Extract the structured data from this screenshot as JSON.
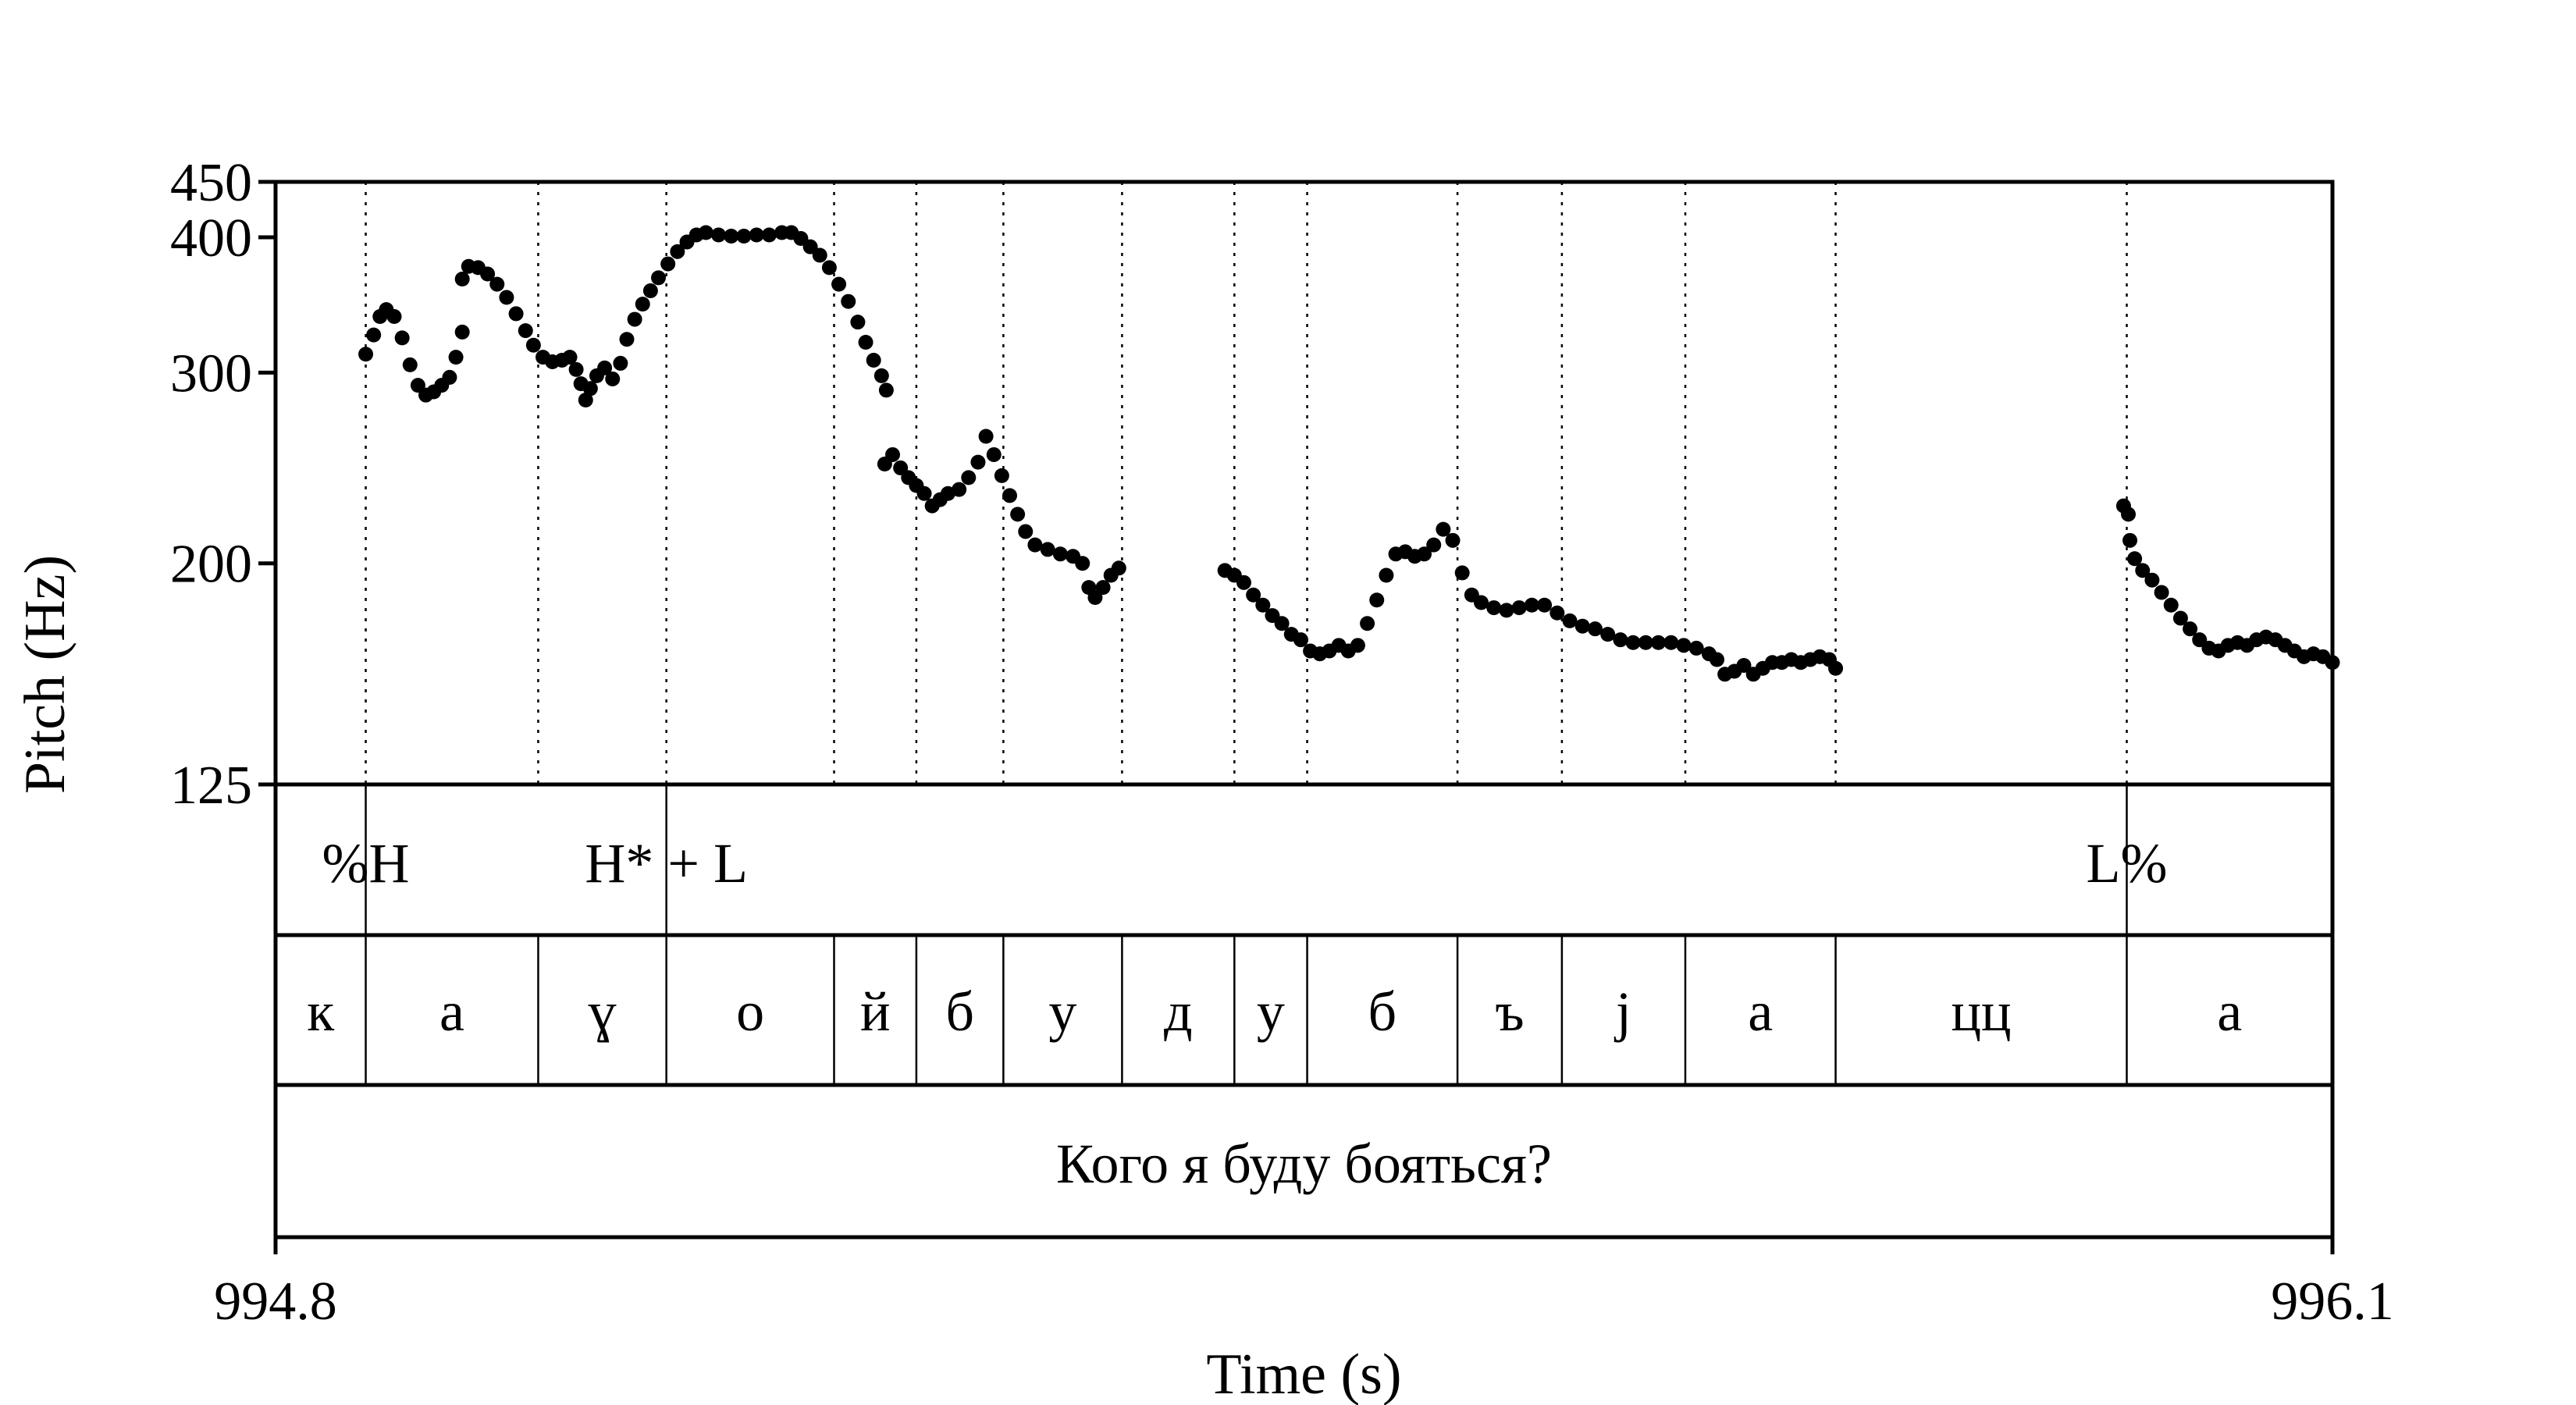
{
  "chart_data": {
    "type": "scatter",
    "xlabel": "Time (s)",
    "ylabel": "Pitch (Hz)",
    "xlim": [
      994.8,
      996.1
    ],
    "ylim": [
      125,
      450
    ],
    "yscale": "log",
    "x_ticks": [
      "994.8",
      "996.1"
    ],
    "y_ticks": [
      {
        "value": 450,
        "label": "450"
      },
      {
        "value": 400,
        "label": "400"
      },
      {
        "value": 300,
        "label": "300"
      },
      {
        "value": 200,
        "label": "200"
      },
      {
        "value": 125,
        "label": "125"
      }
    ],
    "grid_times": [
      994.857,
      994.966,
      995.047,
      995.153,
      995.205,
      995.26,
      995.335,
      995.406,
      995.452,
      995.547,
      995.613,
      995.691,
      995.786,
      995.97
    ],
    "tone_tier": [
      {
        "time": 994.857,
        "label": "%H"
      },
      {
        "time": 995.047,
        "label": "H* + L"
      },
      {
        "time": 995.97,
        "label": "L%"
      }
    ],
    "segment_tier": [
      {
        "start": 994.8,
        "end": 994.857,
        "label": "к"
      },
      {
        "start": 994.857,
        "end": 994.966,
        "label": "а"
      },
      {
        "start": 994.966,
        "end": 995.047,
        "label": "ɣ"
      },
      {
        "start": 995.047,
        "end": 995.153,
        "label": "о"
      },
      {
        "start": 995.153,
        "end": 995.205,
        "label": "й"
      },
      {
        "start": 995.205,
        "end": 995.26,
        "label": "б"
      },
      {
        "start": 995.26,
        "end": 995.335,
        "label": "у"
      },
      {
        "start": 995.335,
        "end": 995.406,
        "label": "д"
      },
      {
        "start": 995.406,
        "end": 995.452,
        "label": "у"
      },
      {
        "start": 995.452,
        "end": 995.547,
        "label": "б"
      },
      {
        "start": 995.547,
        "end": 995.613,
        "label": "ъ"
      },
      {
        "start": 995.613,
        "end": 995.691,
        "label": "j"
      },
      {
        "start": 995.691,
        "end": 995.786,
        "label": "а"
      },
      {
        "start": 995.786,
        "end": 995.97,
        "label": "цц"
      },
      {
        "start": 995.97,
        "end": 996.1,
        "label": "а"
      }
    ],
    "sentence_tier": {
      "start": 994.8,
      "end": 996.1,
      "label": "Кого я буду бояться?"
    },
    "series": [
      {
        "points": [
          [
            994.857,
            312
          ],
          [
            994.862,
            325
          ],
          [
            994.866,
            338
          ],
          [
            994.87,
            343
          ],
          [
            994.875,
            338
          ],
          [
            994.88,
            323
          ],
          [
            994.885,
            305
          ],
          [
            994.89,
            292
          ],
          [
            994.895,
            286
          ],
          [
            994.9,
            288
          ],
          [
            994.905,
            292
          ],
          [
            994.91,
            297
          ],
          [
            994.914,
            310
          ],
          [
            994.918,
            327
          ],
          [
            994.918,
            366
          ],
          [
            994.922,
            376
          ],
          [
            994.928,
            375
          ],
          [
            994.934,
            370
          ],
          [
            994.94,
            362
          ],
          [
            994.946,
            352
          ],
          [
            994.952,
            340
          ],
          [
            994.958,
            328
          ],
          [
            994.963,
            318
          ],
          [
            994.969,
            310
          ],
          [
            994.975,
            307
          ],
          [
            994.981,
            308
          ],
          [
            994.986,
            310
          ],
          [
            994.99,
            302
          ],
          [
            994.993,
            293
          ],
          [
            994.996,
            283
          ],
          [
            994.999,
            290
          ],
          [
            995.003,
            298
          ],
          [
            995.008,
            303
          ],
          [
            995.013,
            296
          ],
          [
            995.018,
            306
          ],
          [
            995.022,
            322
          ],
          [
            995.027,
            336
          ],
          [
            995.032,
            347
          ],
          [
            995.037,
            357
          ],
          [
            995.042,
            367
          ],
          [
            995.048,
            378
          ],
          [
            995.054,
            388
          ],
          [
            995.06,
            396
          ],
          [
            995.066,
            402
          ],
          [
            995.072,
            404
          ],
          [
            995.08,
            402
          ],
          [
            995.088,
            401
          ],
          [
            995.096,
            401
          ],
          [
            995.104,
            402
          ],
          [
            995.112,
            402
          ],
          [
            995.12,
            404
          ],
          [
            995.126,
            404
          ],
          [
            995.132,
            399
          ],
          [
            995.138,
            392
          ],
          [
            995.144,
            385
          ],
          [
            995.15,
            375
          ],
          [
            995.156,
            362
          ],
          [
            995.162,
            349
          ],
          [
            995.168,
            334
          ],
          [
            995.173,
            320
          ],
          [
            995.178,
            308
          ],
          [
            995.183,
            298
          ],
          [
            995.186,
            289
          ],
          [
            995.185,
            247
          ],
          [
            995.19,
            252
          ],
          [
            995.195,
            245
          ],
          [
            995.2,
            240
          ],
          [
            995.205,
            236
          ],
          [
            995.21,
            232
          ],
          [
            995.215,
            226
          ],
          [
            995.22,
            229
          ],
          [
            995.225,
            232
          ],
          [
            995.232,
            234
          ],
          [
            995.238,
            240
          ],
          [
            995.244,
            248
          ],
          [
            995.249,
            262
          ],
          [
            995.254,
            252
          ],
          [
            995.259,
            241
          ],
          [
            995.264,
            231
          ],
          [
            995.269,
            222
          ],
          [
            995.274,
            214
          ],
          [
            995.28,
            208
          ],
          [
            995.288,
            206
          ],
          [
            995.296,
            204
          ],
          [
            995.304,
            203
          ],
          [
            995.31,
            200
          ],
          [
            995.314,
            190
          ],
          [
            995.318,
            186
          ],
          [
            995.323,
            190
          ],
          [
            995.328,
            195
          ],
          [
            995.333,
            198
          ],
          [
            995.4,
            197
          ],
          [
            995.406,
            195
          ],
          [
            995.412,
            192
          ],
          [
            995.418,
            187
          ],
          [
            995.424,
            183
          ],
          [
            995.43,
            179
          ],
          [
            995.436,
            176
          ],
          [
            995.442,
            172
          ],
          [
            995.448,
            170
          ],
          [
            995.454,
            166
          ],
          [
            995.46,
            165
          ],
          [
            995.466,
            166
          ],
          [
            995.472,
            168
          ],
          [
            995.478,
            166
          ],
          [
            995.484,
            168
          ],
          [
            995.49,
            176
          ],
          [
            995.496,
            185
          ],
          [
            995.502,
            195
          ],
          [
            995.508,
            204
          ],
          [
            995.514,
            205
          ],
          [
            995.52,
            203
          ],
          [
            995.526,
            204
          ],
          [
            995.532,
            208
          ],
          [
            995.538,
            215
          ],
          [
            995.544,
            210
          ],
          [
            995.55,
            196
          ],
          [
            995.556,
            187
          ],
          [
            995.562,
            184
          ],
          [
            995.57,
            182
          ],
          [
            995.578,
            181
          ],
          [
            995.586,
            182
          ],
          [
            995.594,
            183
          ],
          [
            995.602,
            183
          ],
          [
            995.61,
            180
          ],
          [
            995.618,
            177
          ],
          [
            995.626,
            175
          ],
          [
            995.634,
            174
          ],
          [
            995.642,
            172
          ],
          [
            995.65,
            170
          ],
          [
            995.658,
            169
          ],
          [
            995.666,
            169
          ],
          [
            995.674,
            169
          ],
          [
            995.682,
            169
          ],
          [
            995.69,
            168
          ],
          [
            995.698,
            167
          ],
          [
            995.706,
            165
          ],
          [
            995.711,
            163
          ],
          [
            995.716,
            158
          ],
          [
            995.722,
            159
          ],
          [
            995.728,
            161
          ],
          [
            995.734,
            158
          ],
          [
            995.74,
            160
          ],
          [
            995.746,
            162
          ],
          [
            995.752,
            162
          ],
          [
            995.758,
            163
          ],
          [
            995.764,
            162
          ],
          [
            995.77,
            163
          ],
          [
            995.776,
            164
          ],
          [
            995.782,
            163
          ],
          [
            995.786,
            160
          ],
          [
            995.968,
            226
          ],
          [
            995.971,
            222
          ],
          [
            995.972,
            210
          ],
          [
            995.975,
            202
          ],
          [
            995.98,
            197
          ],
          [
            995.986,
            193
          ],
          [
            995.992,
            188
          ],
          [
            995.998,
            183
          ],
          [
            996.004,
            178
          ],
          [
            996.01,
            174
          ],
          [
            996.016,
            170
          ],
          [
            996.022,
            167
          ],
          [
            996.028,
            166
          ],
          [
            996.034,
            168
          ],
          [
            996.04,
            169
          ],
          [
            996.046,
            168
          ],
          [
            996.052,
            170
          ],
          [
            996.058,
            171
          ],
          [
            996.064,
            170
          ],
          [
            996.07,
            168
          ],
          [
            996.076,
            166
          ],
          [
            996.082,
            164
          ],
          [
            996.088,
            165
          ],
          [
            996.094,
            164
          ],
          [
            996.1,
            162
          ]
        ]
      }
    ]
  }
}
